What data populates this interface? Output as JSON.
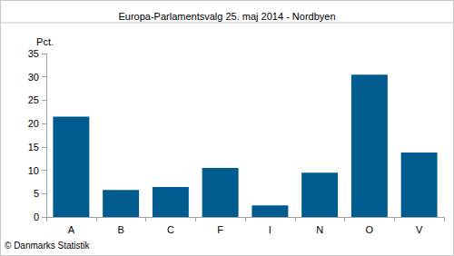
{
  "chart_data": {
    "type": "bar",
    "title": "Europa-Parlamentsvalg 25. maj 2014 - Nordbyen",
    "y_label": "Pct.",
    "annotation": "© Danmarks Statistik",
    "categories": [
      "A",
      "B",
      "C",
      "F",
      "I",
      "N",
      "O",
      "V"
    ],
    "values": [
      21.5,
      5.8,
      6.4,
      10.5,
      2.5,
      9.5,
      30.5,
      13.8
    ],
    "color": "#005b8e",
    "ylim": [
      0,
      35
    ],
    "yticks": [
      0,
      5,
      10,
      15,
      20,
      25,
      30,
      35
    ],
    "grid": false
  }
}
